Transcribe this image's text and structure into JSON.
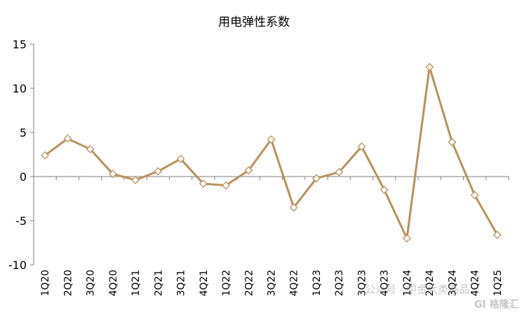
{
  "chart_data": {
    "type": "line",
    "title": "用电弹性系数",
    "xlabel": "",
    "ylabel": "",
    "ylim": [
      -10,
      15
    ],
    "yticks": [
      15,
      10,
      5,
      0,
      -5,
      -10
    ],
    "grid": false,
    "legend": "none",
    "categories": [
      "1Q20",
      "2Q20",
      "3Q20",
      "4Q20",
      "1Q21",
      "2Q21",
      "3Q21",
      "4Q21",
      "1Q22",
      "2Q22",
      "3Q22",
      "4Q22",
      "1Q23",
      "2Q23",
      "3Q23",
      "4Q23",
      "1Q24",
      "2Q24",
      "3Q24",
      "4Q24",
      "1Q25"
    ],
    "series": [
      {
        "values": [
          2.4,
          4.3,
          3.1,
          0.3,
          -0.4,
          0.6,
          2.0,
          -0.8,
          -1.0,
          0.7,
          4.2,
          -3.5,
          -0.2,
          0.5,
          3.4,
          -1.5,
          -7.0,
          12.4,
          3.9,
          -2.1,
          -6.6
        ]
      }
    ]
  },
  "colors": {
    "line": "#b8925a",
    "marker_fill": "#ffffff",
    "marker_stroke": "#b8925a",
    "axis": "#7f7f7f"
  },
  "watermark": {
    "text": "公众号 · 中金大类商品",
    "logo": "GI 格隆汇"
  }
}
